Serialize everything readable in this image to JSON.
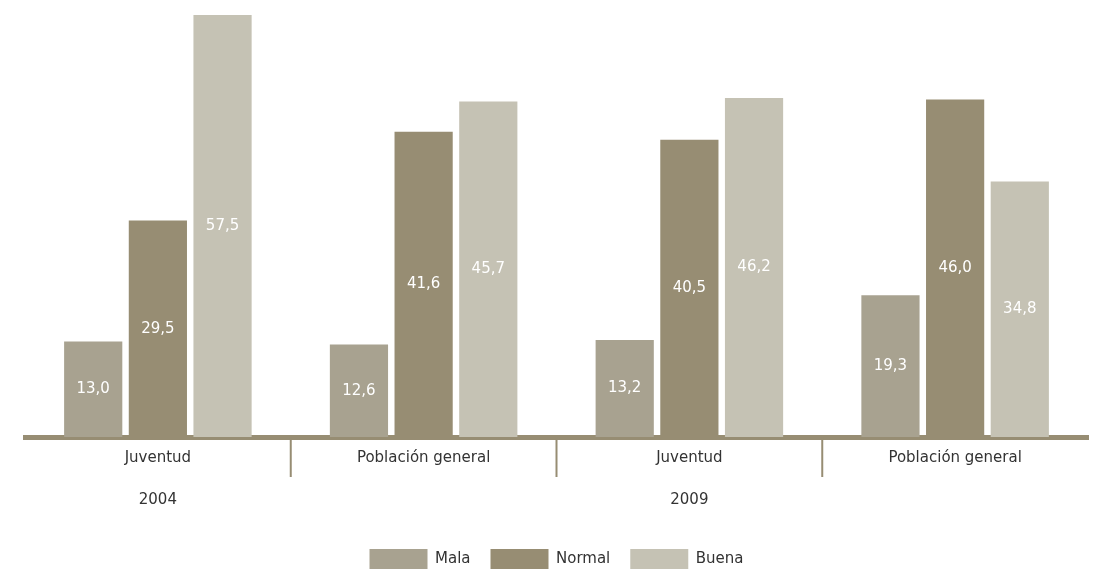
{
  "chart_data": {
    "type": "bar",
    "categories": [
      "Juventud",
      "Población general",
      "Juventud",
      "Población general"
    ],
    "series": [
      {
        "name": "Mala",
        "color": "#a8a290",
        "values": [
          13.0,
          12.6,
          13.2,
          19.3
        ],
        "value_labels": [
          "13,0",
          "12,6",
          "13,2",
          "19,3"
        ]
      },
      {
        "name": "Normal",
        "color": "#978d73",
        "values": [
          29.5,
          41.6,
          40.5,
          46.0
        ],
        "value_labels": [
          "29,5",
          "41,6",
          "40,5",
          "46,0"
        ]
      },
      {
        "name": "Buena",
        "color": "#c5c2b4",
        "values": [
          57.5,
          45.7,
          46.2,
          34.8
        ],
        "value_labels": [
          "57,5",
          "45,7",
          "46,2",
          "34,8"
        ]
      }
    ],
    "annotations": [
      "2004",
      "2009"
    ],
    "legend": "bottom",
    "grid": false
  }
}
